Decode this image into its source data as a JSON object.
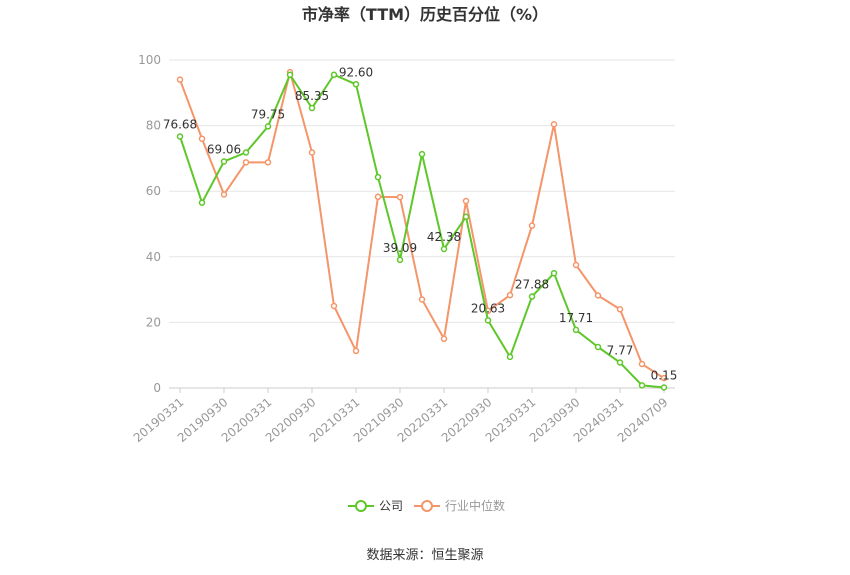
{
  "chart_data": {
    "type": "line",
    "title": "市净率（TTM）历史百分位（%）",
    "ylim": [
      0,
      100
    ],
    "yticks": [
      0,
      20,
      40,
      60,
      80,
      100
    ],
    "x_labels": [
      "20190331",
      "20190930",
      "20200331",
      "20200930",
      "20210331",
      "20210930",
      "20220331",
      "20220930",
      "20230331",
      "20230930",
      "20240331",
      "20240709"
    ],
    "label_every": 2,
    "series": [
      {
        "name": "公司",
        "color": "#5ec729",
        "values": [
          76.68,
          56.5,
          69.06,
          71.8,
          79.75,
          95.5,
          85.35,
          95.5,
          92.6,
          64.3,
          39.09,
          71.3,
          42.38,
          52.2,
          20.63,
          9.5,
          27.88,
          35.0,
          17.71,
          12.5,
          7.77,
          0.8,
          0.15
        ],
        "labeled_indices": [
          0,
          2,
          4,
          6,
          8,
          10,
          12,
          14,
          16,
          18,
          20,
          22
        ]
      },
      {
        "name": "行业中位数",
        "color": "#f4956a",
        "values": [
          94.0,
          76.0,
          59.0,
          68.8,
          68.8,
          96.3,
          71.8,
          25.0,
          11.3,
          58.3,
          58.2,
          27.0,
          15.0,
          57.0,
          23.5,
          28.3,
          49.5,
          80.4,
          37.5,
          28.2,
          24.0,
          7.3,
          3.0
        ],
        "labeled_indices": []
      }
    ],
    "grid": "horizontal",
    "legend_position": "bottom-center"
  },
  "footer": {
    "source": "数据来源：恒生聚源"
  }
}
